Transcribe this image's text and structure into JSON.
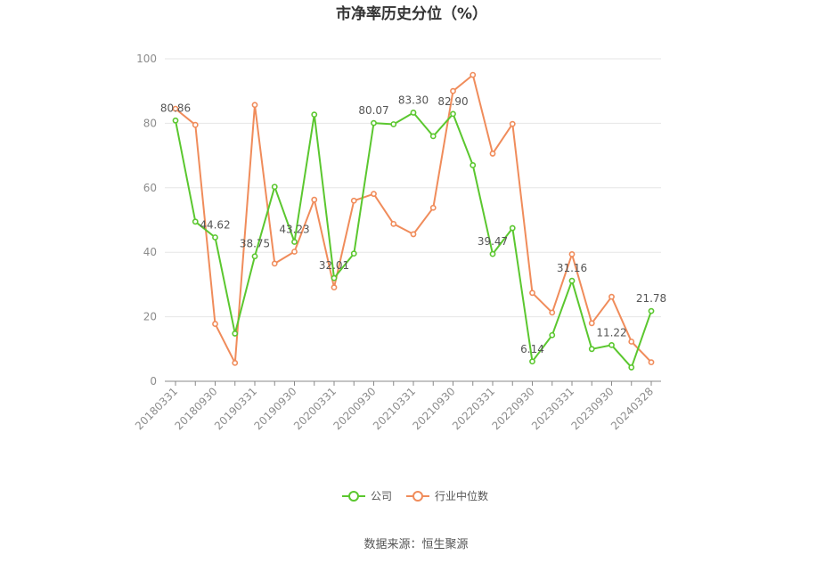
{
  "chart_data": {
    "type": "line",
    "title": "市净率历史分位（%）",
    "source": "数据来源：恒生聚源",
    "ylim": [
      0,
      100
    ],
    "yticks": [
      0,
      20,
      40,
      60,
      80,
      100
    ],
    "grid": true,
    "legend_position": "bottom",
    "x_tick_labels": [
      "20180331",
      "20180930",
      "20190331",
      "20190930",
      "20200331",
      "20200930",
      "20210331",
      "20210930",
      "20220331",
      "20220930",
      "20230331",
      "20230930",
      "20240328"
    ],
    "x": [
      "20180331",
      "20180630",
      "20180930",
      "20181231",
      "20190331",
      "20190630",
      "20190930",
      "20191231",
      "20200331",
      "20200630",
      "20200930",
      "20201231",
      "20210331",
      "20210630",
      "20210930",
      "20211231",
      "20220331",
      "20220630",
      "20220930",
      "20221231",
      "20230331",
      "20230630",
      "20230930",
      "20231231",
      "20240328"
    ],
    "series": [
      {
        "name": "公司",
        "color": "#5bc72f",
        "values": [
          80.86,
          49.5,
          44.62,
          14.8,
          38.75,
          60.3,
          43.23,
          82.7,
          32.01,
          39.6,
          80.07,
          79.7,
          83.3,
          76.0,
          82.9,
          67.0,
          39.47,
          47.5,
          6.14,
          14.3,
          31.16,
          10.0,
          11.22,
          4.3,
          21.78
        ],
        "labels": {
          "0": "80.86",
          "2": "44.62",
          "4": "38.75",
          "6": "43.23",
          "8": "32.01",
          "10": "80.07",
          "12": "83.30",
          "14": "82.90",
          "16": "39.47",
          "18": "6.14",
          "20": "31.16",
          "22": "11.22",
          "24": "21.78"
        }
      },
      {
        "name": "行业中位数",
        "color": "#f08c5b",
        "values": [
          84.5,
          79.5,
          17.8,
          5.7,
          85.7,
          36.5,
          40.2,
          56.3,
          29.1,
          56.0,
          58.1,
          48.8,
          45.6,
          53.8,
          90.0,
          95.0,
          70.6,
          79.8,
          27.4,
          21.3,
          39.4,
          18.0,
          26.2,
          12.3,
          5.9
        ]
      }
    ]
  }
}
